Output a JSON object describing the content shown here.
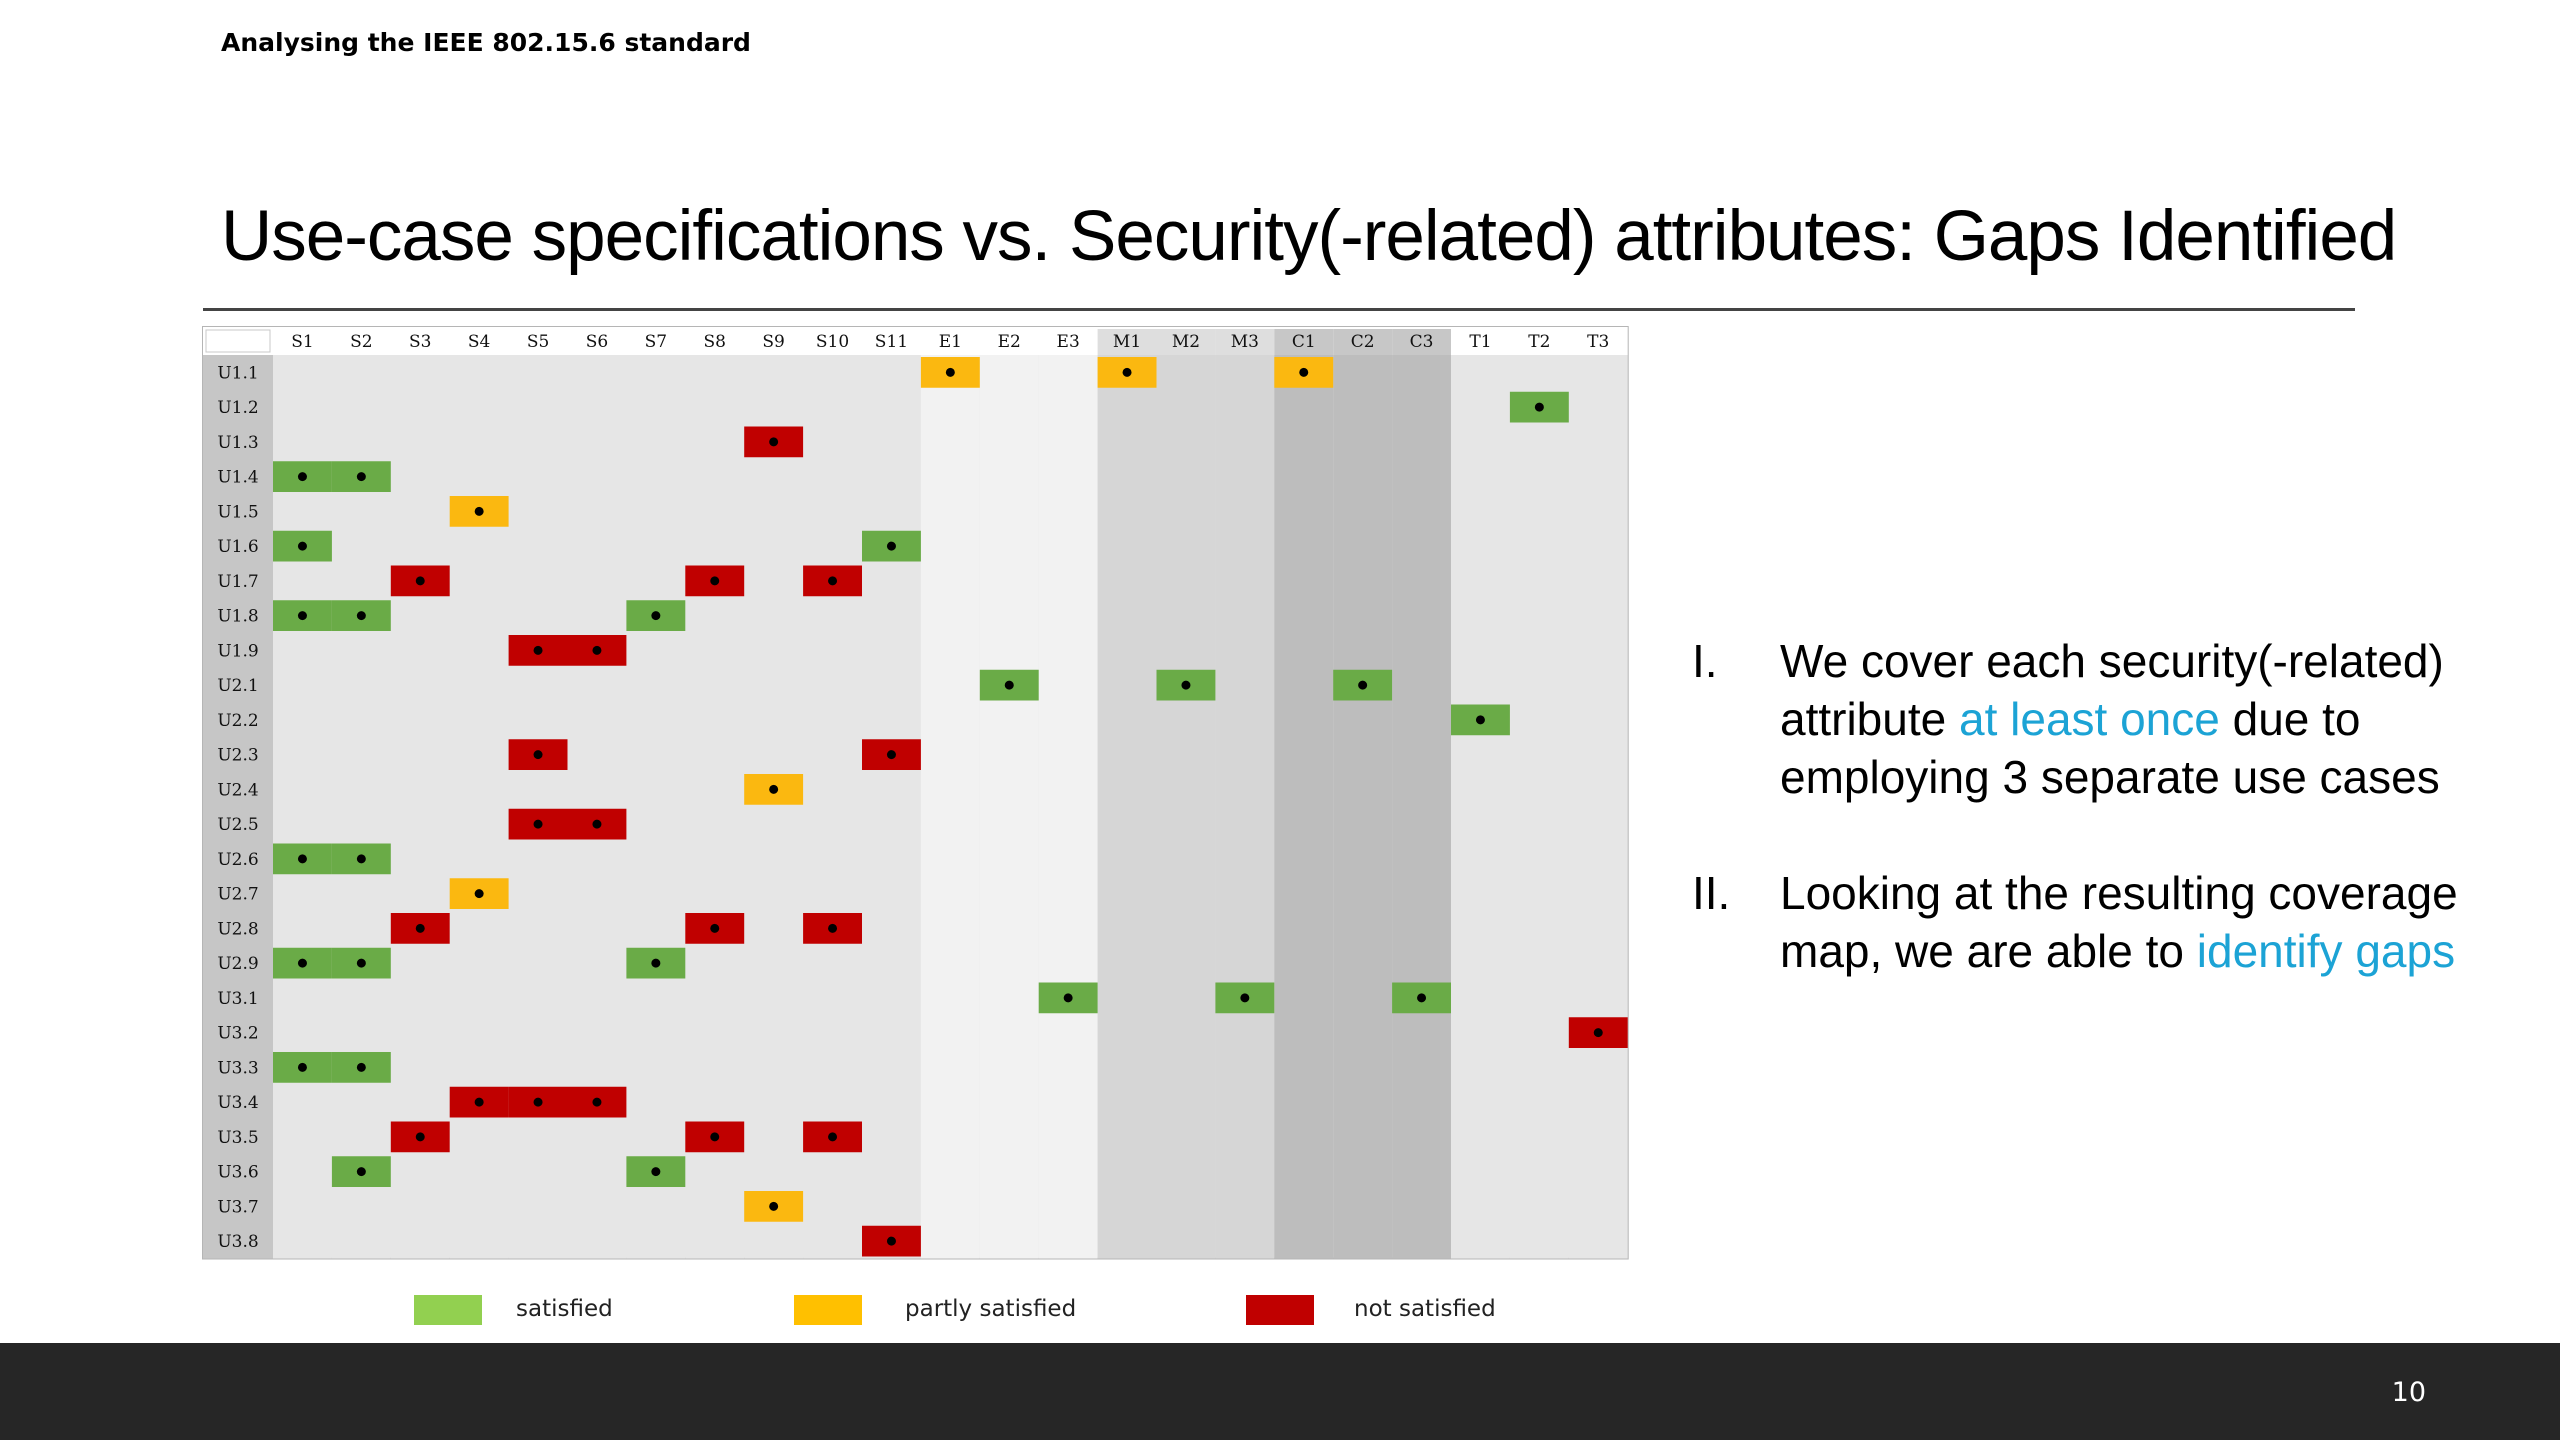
{
  "header": {
    "text": "Analysing the IEEE 802.15.6 standard"
  },
  "title": "Use-case specifications vs. Security(-related) attributes: Gaps Identified",
  "matrix": {
    "columns": [
      "S1",
      "S2",
      "S3",
      "S4",
      "S5",
      "S6",
      "S7",
      "S8",
      "S9",
      "S10",
      "S11",
      "E1",
      "E2",
      "E3",
      "M1",
      "M2",
      "M3",
      "C1",
      "C2",
      "C3",
      "T1",
      "T2",
      "T3"
    ],
    "rows": [
      "U1.1",
      "U1.2",
      "U1.3",
      "U1.4",
      "U1.5",
      "U1.6",
      "U1.7",
      "U1.8",
      "U1.9",
      "U2.1",
      "U2.2",
      "U2.3",
      "U2.4",
      "U2.5",
      "U2.6",
      "U2.7",
      "U2.8",
      "U2.9",
      "U3.1",
      "U3.2",
      "U3.3",
      "U3.4",
      "U3.5",
      "U3.6",
      "U3.7",
      "U3.8"
    ],
    "cells": [
      {
        "row": "U1.1",
        "col": "E1",
        "status": "partly"
      },
      {
        "row": "U1.1",
        "col": "M1",
        "status": "partly"
      },
      {
        "row": "U1.1",
        "col": "C1",
        "status": "partly"
      },
      {
        "row": "U1.2",
        "col": "T2",
        "status": "satisfied"
      },
      {
        "row": "U1.3",
        "col": "S9",
        "status": "not"
      },
      {
        "row": "U1.4",
        "col": "S1",
        "status": "satisfied"
      },
      {
        "row": "U1.4",
        "col": "S2",
        "status": "satisfied"
      },
      {
        "row": "U1.5",
        "col": "S4",
        "status": "partly"
      },
      {
        "row": "U1.6",
        "col": "S1",
        "status": "satisfied"
      },
      {
        "row": "U1.6",
        "col": "S11",
        "status": "satisfied"
      },
      {
        "row": "U1.7",
        "col": "S3",
        "status": "not"
      },
      {
        "row": "U1.7",
        "col": "S8",
        "status": "not"
      },
      {
        "row": "U1.7",
        "col": "S10",
        "status": "not"
      },
      {
        "row": "U1.8",
        "col": "S1",
        "status": "satisfied"
      },
      {
        "row": "U1.8",
        "col": "S2",
        "status": "satisfied"
      },
      {
        "row": "U1.8",
        "col": "S7",
        "status": "satisfied"
      },
      {
        "row": "U1.9",
        "col": "S5",
        "status": "not"
      },
      {
        "row": "U1.9",
        "col": "S6",
        "status": "not"
      },
      {
        "row": "U2.1",
        "col": "E2",
        "status": "satisfied"
      },
      {
        "row": "U2.1",
        "col": "M2",
        "status": "satisfied"
      },
      {
        "row": "U2.1",
        "col": "C2",
        "status": "satisfied"
      },
      {
        "row": "U2.2",
        "col": "T1",
        "status": "satisfied"
      },
      {
        "row": "U2.3",
        "col": "S5",
        "status": "not"
      },
      {
        "row": "U2.3",
        "col": "S11",
        "status": "not"
      },
      {
        "row": "U2.4",
        "col": "S9",
        "status": "partly"
      },
      {
        "row": "U2.5",
        "col": "S5",
        "status": "not"
      },
      {
        "row": "U2.5",
        "col": "S6",
        "status": "not"
      },
      {
        "row": "U2.6",
        "col": "S1",
        "status": "satisfied"
      },
      {
        "row": "U2.6",
        "col": "S2",
        "status": "satisfied"
      },
      {
        "row": "U2.7",
        "col": "S4",
        "status": "partly"
      },
      {
        "row": "U2.8",
        "col": "S3",
        "status": "not"
      },
      {
        "row": "U2.8",
        "col": "S8",
        "status": "not"
      },
      {
        "row": "U2.8",
        "col": "S10",
        "status": "not"
      },
      {
        "row": "U2.9",
        "col": "S1",
        "status": "satisfied"
      },
      {
        "row": "U2.9",
        "col": "S2",
        "status": "satisfied"
      },
      {
        "row": "U2.9",
        "col": "S7",
        "status": "satisfied"
      },
      {
        "row": "U3.1",
        "col": "E3",
        "status": "satisfied"
      },
      {
        "row": "U3.1",
        "col": "M3",
        "status": "satisfied"
      },
      {
        "row": "U3.1",
        "col": "C3",
        "status": "satisfied"
      },
      {
        "row": "U3.2",
        "col": "T3",
        "status": "not"
      },
      {
        "row": "U3.3",
        "col": "S1",
        "status": "satisfied"
      },
      {
        "row": "U3.3",
        "col": "S2",
        "status": "satisfied"
      },
      {
        "row": "U3.4",
        "col": "S4",
        "status": "not"
      },
      {
        "row": "U3.4",
        "col": "S5",
        "status": "not"
      },
      {
        "row": "U3.4",
        "col": "S6",
        "status": "not"
      },
      {
        "row": "U3.5",
        "col": "S3",
        "status": "not"
      },
      {
        "row": "U3.5",
        "col": "S8",
        "status": "not"
      },
      {
        "row": "U3.5",
        "col": "S10",
        "status": "not"
      },
      {
        "row": "U3.6",
        "col": "S2",
        "status": "satisfied"
      },
      {
        "row": "U3.6",
        "col": "S7",
        "status": "satisfied"
      },
      {
        "row": "U3.7",
        "col": "S9",
        "status": "partly"
      },
      {
        "row": "U3.8",
        "col": "S11",
        "status": "not"
      }
    ]
  },
  "legend": [
    {
      "key": "satisfied",
      "label": "satisfied"
    },
    {
      "key": "partly",
      "label": "partly satisfied"
    },
    {
      "key": "not",
      "label": "not satisfied"
    }
  ],
  "colors": {
    "satisfied": "#6aab47",
    "partly": "#fbb810",
    "not": "#c00000",
    "legend_satisfied": "#92d050",
    "legend_partly": "#ffc000",
    "legend_not": "#c00000",
    "highlight": "#1ca3d5"
  },
  "notes": [
    {
      "num": "I.",
      "before": "We cover each security(-related) attribute ",
      "highlight": "at least once",
      "after": " due to employing 3 separate use cases"
    },
    {
      "num": "II.",
      "before": "Looking at the resulting coverage map, we are able to ",
      "highlight": "identify gaps",
      "after": ""
    }
  ],
  "page_number": "10"
}
